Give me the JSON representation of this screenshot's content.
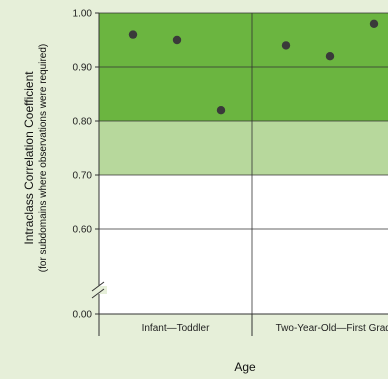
{
  "chart_data": {
    "type": "scatter",
    "xlabel": "Age",
    "ylabel": "Intraclass Correlation Coefficient",
    "ylabel_sub": "(for subdomains where observations were required)",
    "categories": [
      "Infant—Toddler",
      "Two-Year-Old—First Grade"
    ],
    "y_ticks": [
      "1.00",
      "0.90",
      "0.80",
      "0.70",
      "0.60",
      "0.00"
    ],
    "axis_break": true,
    "grid": true,
    "bands": [
      {
        "from": 0.9,
        "to": 1.0,
        "color": "#6bb540"
      },
      {
        "from": 0.8,
        "to": 0.9,
        "color": "#6bb540"
      },
      {
        "from": 0.7,
        "to": 0.8,
        "color": "#b7d89c"
      },
      {
        "from": 0.5,
        "to": 0.7,
        "color": "#ffffff"
      }
    ],
    "points": [
      {
        "category": "Infant—Toddler",
        "y": 0.96
      },
      {
        "category": "Infant—Toddler",
        "y": 0.95
      },
      {
        "category": "Infant—Toddler",
        "y": 0.82
      },
      {
        "category": "Two-Year-Old—First Grade",
        "y": 0.94
      },
      {
        "category": "Two-Year-Old—First Grade",
        "y": 0.92
      },
      {
        "category": "Two-Year-Old—First Grade",
        "y": 0.98
      }
    ],
    "colors": {
      "point": "#3a3a3a",
      "background": "#e6efd9",
      "grid": "#333333"
    }
  }
}
